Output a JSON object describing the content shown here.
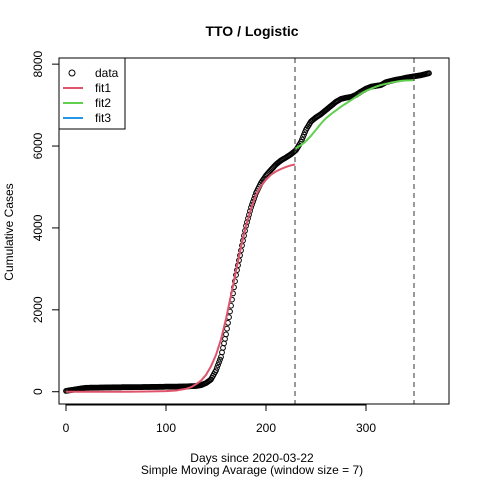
{
  "chart_data": {
    "type": "line",
    "title": "TTO / Logistic",
    "xlabel": "Days since 2020-03-22",
    "xlabel2": "Simple Moving Avarage (window size = 7)",
    "ylabel": "Cumulative Cases",
    "xlim": [
      -7,
      383
    ],
    "ylim": [
      -300,
      8150
    ],
    "xticks": [
      0,
      100,
      200,
      300
    ],
    "yticks": [
      0,
      2000,
      4000,
      6000,
      8000
    ],
    "vlines": [
      229,
      348
    ],
    "legend_position": "top-left",
    "colors": {
      "data": "#000000",
      "fit1": "#DF536B",
      "fit2": "#61D04F",
      "fit3": "#2297E6"
    },
    "legend": [
      {
        "label": "data",
        "symbol": "circle"
      },
      {
        "label": "fit1",
        "symbol": "line",
        "color": "#DF536B"
      },
      {
        "label": "fit2",
        "symbol": "line",
        "color": "#61D04F"
      },
      {
        "label": "fit3",
        "symbol": "line",
        "color": "#2297E6"
      }
    ],
    "series": [
      {
        "name": "data",
        "style": "points",
        "x": [
          0,
          5,
          10,
          15,
          20,
          30,
          40,
          50,
          60,
          70,
          80,
          90,
          100,
          110,
          120,
          125,
          130,
          135,
          140,
          145,
          150,
          155,
          160,
          165,
          170,
          175,
          180,
          185,
          190,
          195,
          200,
          205,
          210,
          215,
          220,
          225,
          230,
          235,
          240,
          245,
          250,
          255,
          260,
          265,
          270,
          275,
          280,
          285,
          290,
          295,
          300,
          305,
          310,
          315,
          320,
          325,
          330,
          335,
          340,
          345,
          350,
          355,
          360,
          363
        ],
        "y": [
          20,
          40,
          60,
          80,
          95,
          100,
          105,
          108,
          110,
          112,
          115,
          118,
          122,
          125,
          130,
          135,
          140,
          160,
          210,
          300,
          520,
          850,
          1400,
          2100,
          2850,
          3450,
          4050,
          4500,
          4850,
          5100,
          5280,
          5420,
          5550,
          5650,
          5720,
          5800,
          5900,
          6100,
          6400,
          6600,
          6700,
          6780,
          6880,
          6980,
          7080,
          7150,
          7180,
          7200,
          7250,
          7330,
          7400,
          7450,
          7470,
          7490,
          7560,
          7590,
          7620,
          7640,
          7670,
          7690,
          7710,
          7730,
          7760,
          7780
        ]
      },
      {
        "name": "fit1",
        "style": "line",
        "x": [
          0,
          20,
          40,
          60,
          80,
          100,
          110,
          120,
          125,
          130,
          135,
          140,
          145,
          150,
          155,
          160,
          165,
          170,
          175,
          180,
          185,
          190,
          195,
          200,
          205,
          210,
          215,
          220,
          225,
          229
        ],
        "y": [
          0,
          0,
          0,
          0,
          5,
          15,
          30,
          70,
          110,
          180,
          270,
          410,
          620,
          900,
          1280,
          1780,
          2350,
          2950,
          3530,
          4050,
          4470,
          4800,
          5020,
          5180,
          5300,
          5380,
          5440,
          5490,
          5530,
          5550
        ]
      },
      {
        "name": "fit2",
        "style": "line",
        "x": [
          229,
          235,
          240,
          245,
          250,
          255,
          260,
          265,
          270,
          275,
          280,
          285,
          290,
          295,
          300,
          305,
          310,
          315,
          320,
          325,
          330,
          335,
          340,
          345,
          348
        ],
        "y": [
          5930,
          6020,
          6120,
          6250,
          6400,
          6550,
          6680,
          6780,
          6870,
          6960,
          7040,
          7120,
          7200,
          7280,
          7350,
          7400,
          7450,
          7490,
          7520,
          7550,
          7570,
          7590,
          7600,
          7605,
          7610
        ]
      },
      {
        "name": "fit3",
        "style": "line",
        "x": [],
        "y": []
      }
    ]
  }
}
